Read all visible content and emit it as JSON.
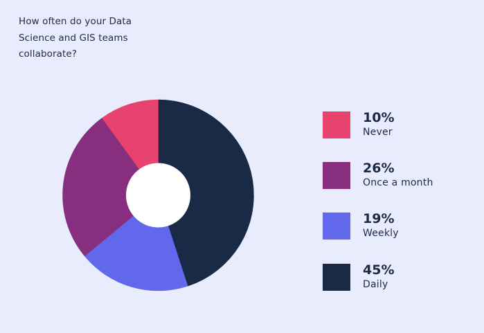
{
  "title": "How often do your Data Science and GIS teams collaborate?",
  "background": "#E8ECFC",
  "chart_data": {
    "type": "pie",
    "variant": "donut",
    "title": "How often do your Data Science and GIS teams collaborate?",
    "categories": [
      "Never",
      "Once a month",
      "Weekly",
      "Daily"
    ],
    "values": [
      10,
      26,
      19,
      45
    ],
    "unit": "%",
    "colors": [
      "#E8436E",
      "#882E7E",
      "#6268EC",
      "#182A45"
    ],
    "drawing_order_clockwise_from_top": [
      "Daily",
      "Weekly",
      "Once a month",
      "Never"
    ],
    "center_hole_color": "#FFFFFF",
    "legend_position": "right"
  },
  "legend": {
    "items": [
      {
        "pct": "10%",
        "label": "Never",
        "color": "#E8436E"
      },
      {
        "pct": "26%",
        "label": "Once a month",
        "color": "#882E7E"
      },
      {
        "pct": "19%",
        "label": "Weekly",
        "color": "#6268EC"
      },
      {
        "pct": "45%",
        "label": "Daily",
        "color": "#182A45"
      }
    ]
  }
}
